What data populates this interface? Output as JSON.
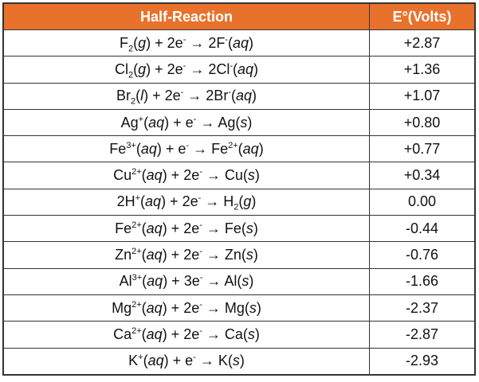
{
  "table": {
    "header": [
      "Half-Reaction",
      "E°(Volts)"
    ],
    "rows": [
      {
        "reaction": [
          "F",
          {
            "sub": "2"
          },
          "(",
          {
            "i": "g"
          },
          ") + 2e",
          {
            "sup": "-"
          },
          " → 2F",
          {
            "sup": "-"
          },
          "(",
          {
            "i": "aq"
          },
          ")"
        ],
        "value": "+2.87"
      },
      {
        "reaction": [
          "Cl",
          {
            "sub": "2"
          },
          "(",
          {
            "i": "g"
          },
          ") + 2e",
          {
            "sup": "-"
          },
          " → 2Cl",
          {
            "sup": "-"
          },
          "(",
          {
            "i": "aq"
          },
          ")"
        ],
        "value": "+1.36"
      },
      {
        "reaction": [
          "Br",
          {
            "sub": "2"
          },
          "(",
          {
            "i": "l"
          },
          ") + 2e",
          {
            "sup": "-"
          },
          " → 2Br",
          {
            "sup": "-"
          },
          "(",
          {
            "i": "aq"
          },
          ")"
        ],
        "value": "+1.07"
      },
      {
        "reaction": [
          "Ag",
          {
            "sup": "+"
          },
          "(",
          {
            "i": "aq"
          },
          ") + e",
          {
            "sup": "-"
          },
          " → Ag(",
          {
            "i": "s"
          },
          ")"
        ],
        "value": "+0.80"
      },
      {
        "reaction": [
          "Fe",
          {
            "sup": "3+"
          },
          "(",
          {
            "i": "aq"
          },
          ") + e",
          {
            "sup": "-"
          },
          " → Fe",
          {
            "sup": "2+"
          },
          "(",
          {
            "i": "aq"
          },
          ")"
        ],
        "value": "+0.77"
      },
      {
        "reaction": [
          "Cu",
          {
            "sup": "2+"
          },
          "(",
          {
            "i": "aq"
          },
          ") + 2e",
          {
            "sup": "-"
          },
          " → Cu(",
          {
            "i": "s"
          },
          ")"
        ],
        "value": "+0.34"
      },
      {
        "reaction": [
          "2H",
          {
            "sup": "+"
          },
          "(",
          {
            "i": "aq"
          },
          ") + 2e",
          {
            "sup": "-"
          },
          " → H",
          {
            "sub": "2"
          },
          "(",
          {
            "i": "g"
          },
          ")"
        ],
        "value": "0.00"
      },
      {
        "reaction": [
          "Fe",
          {
            "sup": "2+"
          },
          "(",
          {
            "i": "aq"
          },
          ") + 2e",
          {
            "sup": "-"
          },
          " → Fe(",
          {
            "i": "s"
          },
          ")"
        ],
        "value": "-0.44"
      },
      {
        "reaction": [
          "Zn",
          {
            "sup": "2+"
          },
          "(",
          {
            "i": "aq"
          },
          ") + 2e",
          {
            "sup": "-"
          },
          " → Zn(",
          {
            "i": "s"
          },
          ")"
        ],
        "value": "-0.76"
      },
      {
        "reaction": [
          "Al",
          {
            "sup": "3+"
          },
          "(",
          {
            "i": "aq"
          },
          ") + 3e",
          {
            "sup": "-"
          },
          " → Al(",
          {
            "i": "s"
          },
          ")"
        ],
        "value": "-1.66"
      },
      {
        "reaction": [
          "Mg",
          {
            "sup": "2+"
          },
          "(",
          {
            "i": "aq"
          },
          ") + 2e",
          {
            "sup": "-"
          },
          " → Mg(",
          {
            "i": "s"
          },
          ")"
        ],
        "value": "-2.37"
      },
      {
        "reaction": [
          "Ca",
          {
            "sup": "2+"
          },
          "(",
          {
            "i": "aq"
          },
          ") + 2e",
          {
            "sup": "-"
          },
          " → Ca(",
          {
            "i": "s"
          },
          ")"
        ],
        "value": "-2.87"
      },
      {
        "reaction": [
          "K",
          {
            "sup": "+"
          },
          "(",
          {
            "i": "aq"
          },
          ") + e",
          {
            "sup": "-"
          },
          " → K(",
          {
            "i": "s"
          },
          ")"
        ],
        "value": "-2.93"
      }
    ]
  }
}
